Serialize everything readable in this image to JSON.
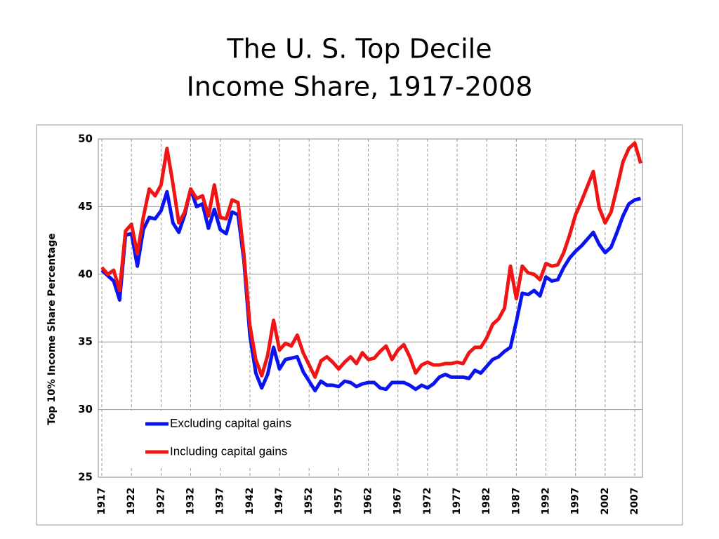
{
  "chart_data": {
    "type": "line",
    "title": [
      "The U. S. Top Decile",
      "Income Share, 1917-2008"
    ],
    "y_label": "Top 10% Income Share Percentage",
    "x": [
      1917,
      1918,
      1919,
      1920,
      1921,
      1922,
      1923,
      1924,
      1925,
      1926,
      1927,
      1928,
      1929,
      1930,
      1931,
      1932,
      1933,
      1934,
      1935,
      1936,
      1937,
      1938,
      1939,
      1940,
      1941,
      1942,
      1943,
      1944,
      1945,
      1946,
      1947,
      1948,
      1949,
      1950,
      1951,
      1952,
      1953,
      1954,
      1955,
      1956,
      1957,
      1958,
      1959,
      1960,
      1961,
      1962,
      1963,
      1964,
      1965,
      1966,
      1967,
      1968,
      1969,
      1970,
      1971,
      1972,
      1973,
      1974,
      1975,
      1976,
      1977,
      1978,
      1979,
      1980,
      1981,
      1982,
      1983,
      1984,
      1985,
      1986,
      1987,
      1988,
      1989,
      1990,
      1991,
      1992,
      1993,
      1994,
      1995,
      1996,
      1997,
      1998,
      1999,
      2000,
      2001,
      2002,
      2003,
      2004,
      2005,
      2006,
      2007,
      2008
    ],
    "series": [
      {
        "name": "Excluding capital gains",
        "color": "#0a14f0",
        "values": [
          40.3,
          39.9,
          39.5,
          38.1,
          42.9,
          43.0,
          40.6,
          43.3,
          44.2,
          44.1,
          44.7,
          46.1,
          43.8,
          43.1,
          44.4,
          46.3,
          45.0,
          45.2,
          43.4,
          44.8,
          43.3,
          43.0,
          44.6,
          44.4,
          41.0,
          35.5,
          32.7,
          31.6,
          32.6,
          34.6,
          33.0,
          33.7,
          33.8,
          33.9,
          32.8,
          32.1,
          31.4,
          32.1,
          31.8,
          31.8,
          31.7,
          32.1,
          32.0,
          31.7,
          31.9,
          32.0,
          32.0,
          31.6,
          31.5,
          32.0,
          32.0,
          32.0,
          31.8,
          31.5,
          31.8,
          31.6,
          31.9,
          32.4,
          32.6,
          32.4,
          32.4,
          32.4,
          32.3,
          32.9,
          32.7,
          33.2,
          33.7,
          33.9,
          34.3,
          34.6,
          36.5,
          38.6,
          38.5,
          38.8,
          38.4,
          39.8,
          39.5,
          39.6,
          40.5,
          41.2,
          41.7,
          42.1,
          42.6,
          43.1,
          42.2,
          41.6,
          42.0,
          43.1,
          44.3,
          45.2,
          45.5,
          45.6
        ]
      },
      {
        "name": "Including capital gains",
        "color": "#f01414",
        "values": [
          40.5,
          40.0,
          40.3,
          38.8,
          43.2,
          43.7,
          41.5,
          44.2,
          46.3,
          45.8,
          46.6,
          49.3,
          46.7,
          43.8,
          44.6,
          46.3,
          45.6,
          45.8,
          44.3,
          46.6,
          44.2,
          44.1,
          45.5,
          45.3,
          41.4,
          36.2,
          33.7,
          32.5,
          34.0,
          36.6,
          34.4,
          34.9,
          34.7,
          35.5,
          34.2,
          33.3,
          32.4,
          33.6,
          33.9,
          33.5,
          33.0,
          33.5,
          33.9,
          33.4,
          34.2,
          33.7,
          33.8,
          34.3,
          34.7,
          33.7,
          34.4,
          34.8,
          33.9,
          32.7,
          33.3,
          33.5,
          33.3,
          33.3,
          33.4,
          33.4,
          33.5,
          33.4,
          34.2,
          34.6,
          34.6,
          35.3,
          36.3,
          36.7,
          37.5,
          40.6,
          38.2,
          40.6,
          40.1,
          40.0,
          39.6,
          40.8,
          40.6,
          40.7,
          41.6,
          42.9,
          44.4,
          45.4,
          46.5,
          47.6,
          44.9,
          43.8,
          44.6,
          46.4,
          48.3,
          49.3,
          49.7,
          48.2
        ]
      }
    ],
    "xlim": [
      1916.4,
      2008.3
    ],
    "xticks": [
      1917,
      1922,
      1927,
      1932,
      1937,
      1942,
      1947,
      1952,
      1957,
      1962,
      1967,
      1972,
      1977,
      1982,
      1987,
      1992,
      1997,
      2002,
      2007
    ],
    "ylim": [
      25,
      50
    ],
    "yticks": [
      25,
      30,
      35,
      40,
      45,
      50
    ],
    "grid": true,
    "legend": "lower left"
  }
}
